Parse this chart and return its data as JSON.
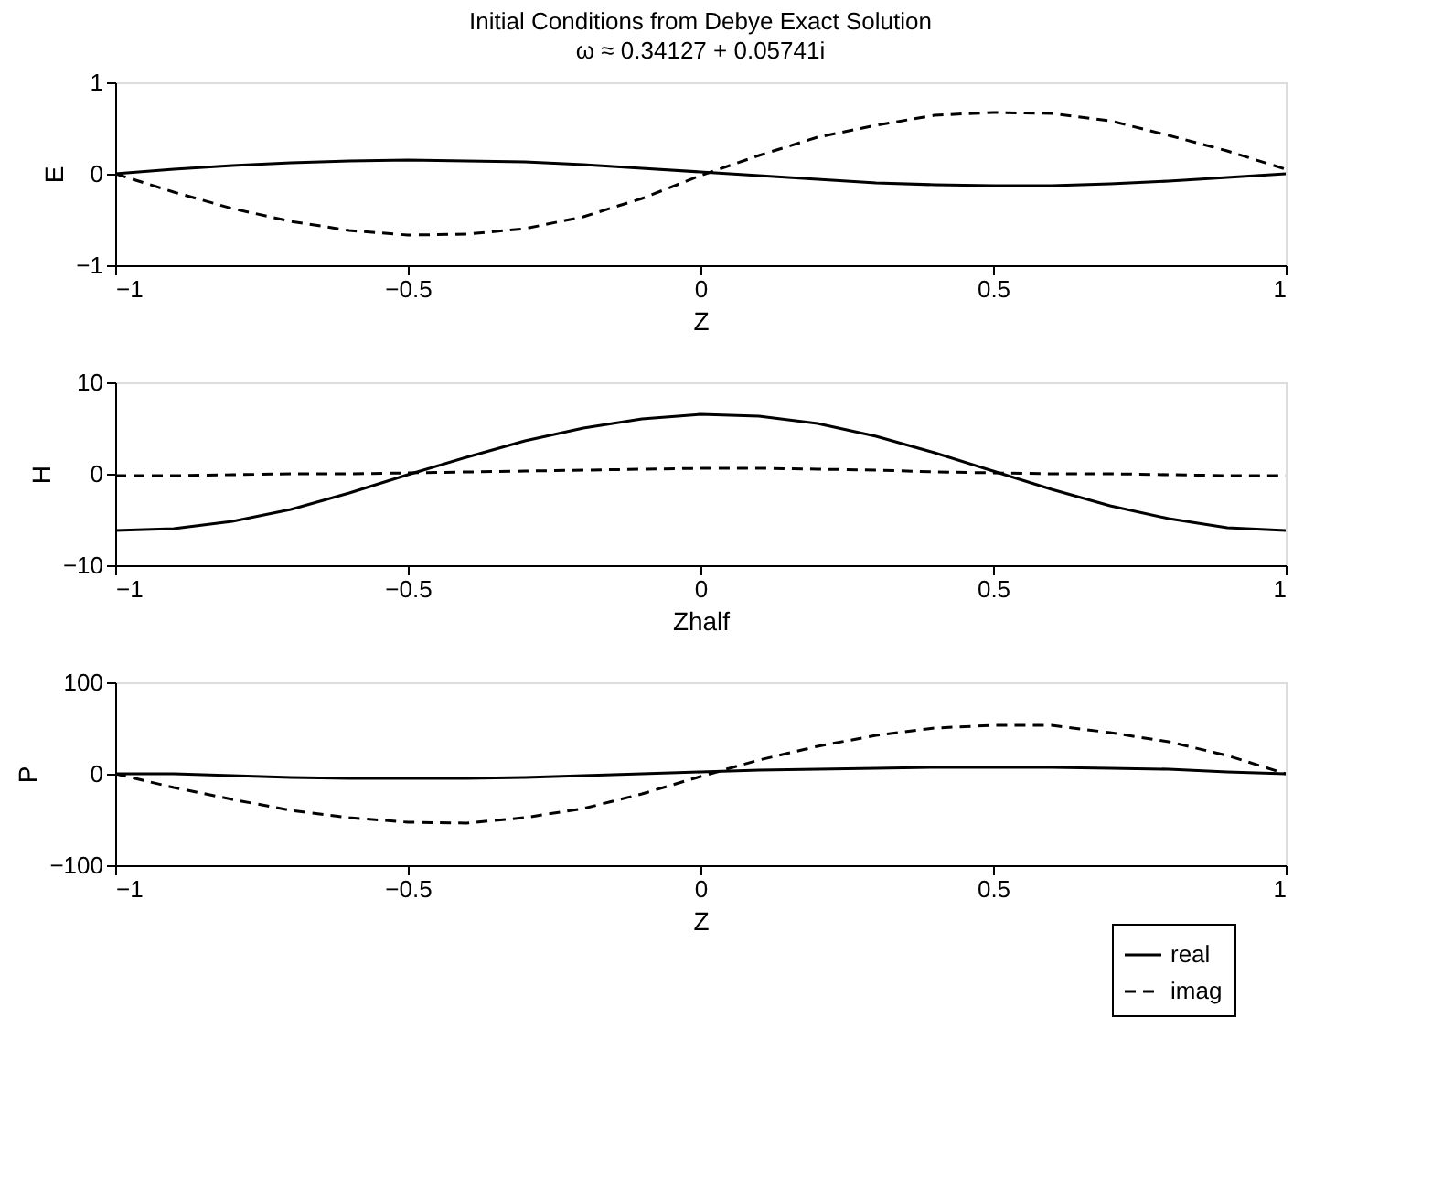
{
  "chart_data": [
    {
      "type": "line",
      "title": "Initial Conditions from Debye Exact Solution",
      "subtitle": "ω ≈ 0.34127 + 0.05741i",
      "xlabel": "Z",
      "ylabel": "E",
      "xlim": [
        -1,
        1
      ],
      "ylim": [
        -1,
        1
      ],
      "xticks": [
        -1,
        -0.5,
        0,
        0.5,
        1
      ],
      "yticks": [
        -1,
        0,
        1
      ],
      "grid": false,
      "x": [
        -1,
        -0.9,
        -0.8,
        -0.7,
        -0.6,
        -0.5,
        -0.4,
        -0.3,
        -0.2,
        -0.1,
        0,
        0.1,
        0.2,
        0.3,
        0.4,
        0.5,
        0.6,
        0.7,
        0.8,
        0.9,
        1
      ],
      "series": [
        {
          "color": "#000000",
          "line_style": "solid",
          "values": [
            0,
            0.05,
            0.09,
            0.12,
            0.14,
            0.15,
            0.14,
            0.13,
            0.1,
            0.06,
            0.02,
            -0.02,
            -0.06,
            -0.1,
            -0.12,
            -0.13,
            -0.13,
            -0.11,
            -0.08,
            -0.04,
            0
          ]
        },
        {
          "color": "#000000",
          "line_style": "dashed",
          "values": [
            0,
            -0.2,
            -0.38,
            -0.52,
            -0.62,
            -0.67,
            -0.66,
            -0.6,
            -0.47,
            -0.27,
            -0.02,
            0.2,
            0.4,
            0.53,
            0.64,
            0.67,
            0.66,
            0.58,
            0.42,
            0.25,
            0.05
          ]
        }
      ]
    },
    {
      "type": "line",
      "xlabel": "Zhalf",
      "ylabel": "H",
      "xlim": [
        -1,
        1
      ],
      "ylim": [
        -10,
        10
      ],
      "xticks": [
        -1,
        -0.5,
        0,
        0.5,
        1
      ],
      "yticks": [
        -10,
        0,
        10
      ],
      "grid": false,
      "x": [
        -1,
        -0.9,
        -0.8,
        -0.7,
        -0.6,
        -0.5,
        -0.4,
        -0.3,
        -0.2,
        -0.1,
        0,
        0.1,
        0.2,
        0.3,
        0.4,
        0.5,
        0.6,
        0.7,
        0.8,
        0.9,
        1
      ],
      "series": [
        {
          "color": "#000000",
          "line_style": "solid",
          "values": [
            -6.2,
            -6,
            -5.2,
            -3.9,
            -2.1,
            -0.1,
            1.8,
            3.6,
            5,
            6,
            6.5,
            6.3,
            5.5,
            4.1,
            2.3,
            0.3,
            -1.7,
            -3.5,
            -4.9,
            -5.9,
            -6.2
          ]
        },
        {
          "color": "#000000",
          "line_style": "dashed",
          "values": [
            -0.2,
            -0.2,
            -0.1,
            0,
            0,
            0.1,
            0.2,
            0.3,
            0.4,
            0.5,
            0.6,
            0.6,
            0.5,
            0.4,
            0.2,
            0.1,
            0,
            0,
            -0.1,
            -0.2,
            -0.2
          ]
        }
      ]
    },
    {
      "type": "line",
      "xlabel": "Z",
      "ylabel": "P",
      "xlim": [
        -1,
        1
      ],
      "ylim": [
        -100,
        100
      ],
      "xticks": [
        -1,
        -0.5,
        0,
        0.5,
        1
      ],
      "yticks": [
        -100,
        0,
        100
      ],
      "grid": false,
      "legend": "bottom right",
      "x": [
        -1,
        -0.9,
        -0.8,
        -0.7,
        -0.6,
        -0.5,
        -0.4,
        -0.3,
        -0.2,
        -0.1,
        0,
        0.1,
        0.2,
        0.3,
        0.4,
        0.5,
        0.6,
        0.7,
        0.8,
        0.9,
        1
      ],
      "series": [
        {
          "name": "real",
          "color": "#000000",
          "line_style": "solid",
          "values": [
            0,
            0,
            -2,
            -4,
            -5,
            -5,
            -5,
            -4,
            -2,
            0,
            2,
            4,
            5,
            6,
            7,
            7,
            7,
            6,
            5,
            2,
            0
          ]
        },
        {
          "name": "imag",
          "color": "#000000",
          "line_style": "dashed",
          "values": [
            0,
            -15,
            -28,
            -40,
            -48,
            -53,
            -54,
            -48,
            -38,
            -22,
            -3,
            15,
            30,
            42,
            50,
            53,
            53,
            45,
            35,
            20,
            0
          ]
        }
      ]
    }
  ]
}
